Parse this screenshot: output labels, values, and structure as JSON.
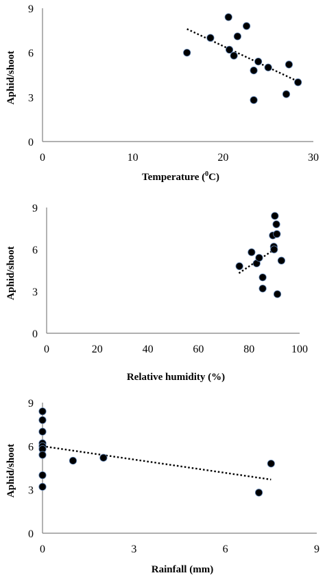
{
  "chart_data": [
    {
      "type": "scatter",
      "xlabel": "Temperature (°C)",
      "xlabel_main": "Temperature (",
      "xlabel_sup": "0",
      "xlabel_end": "C)",
      "ylabel": "Aphid/shoot",
      "xlim": [
        0,
        30
      ],
      "ylim": [
        0,
        9
      ],
      "xticks": [
        0,
        10,
        20,
        30
      ],
      "yticks": [
        0,
        3,
        6,
        9
      ],
      "grid": false,
      "trendline": {
        "style": "dotted",
        "x": [
          16,
          28.5
        ],
        "y": [
          7.6,
          4.0
        ]
      },
      "points": [
        {
          "x": 16.0,
          "y": 6.0
        },
        {
          "x": 18.6,
          "y": 7.0
        },
        {
          "x": 20.6,
          "y": 8.4
        },
        {
          "x": 20.7,
          "y": 6.2
        },
        {
          "x": 21.2,
          "y": 5.8
        },
        {
          "x": 21.6,
          "y": 7.1
        },
        {
          "x": 22.6,
          "y": 7.8
        },
        {
          "x": 23.4,
          "y": 4.8
        },
        {
          "x": 23.4,
          "y": 2.8
        },
        {
          "x": 23.9,
          "y": 5.4
        },
        {
          "x": 25.0,
          "y": 5.0
        },
        {
          "x": 27.0,
          "y": 3.2
        },
        {
          "x": 27.3,
          "y": 5.2
        },
        {
          "x": 28.3,
          "y": 4.0
        }
      ]
    },
    {
      "type": "scatter",
      "xlabel": "Relative humidity (%)",
      "ylabel": "Aphid/shoot",
      "xlim": [
        0,
        100
      ],
      "ylim": [
        0,
        9
      ],
      "xticks": [
        0,
        20,
        40,
        60,
        80,
        100
      ],
      "yticks": [
        0,
        3,
        6,
        9
      ],
      "grid": false,
      "trendline": {
        "style": "dotted",
        "x": [
          76,
          90
        ],
        "y": [
          4.3,
          6.0
        ]
      },
      "points": [
        {
          "x": 76.2,
          "y": 4.8
        },
        {
          "x": 81.0,
          "y": 5.8
        },
        {
          "x": 83.0,
          "y": 5.0
        },
        {
          "x": 84.0,
          "y": 5.4
        },
        {
          "x": 85.4,
          "y": 4.0
        },
        {
          "x": 85.4,
          "y": 3.2
        },
        {
          "x": 89.4,
          "y": 7.0
        },
        {
          "x": 89.8,
          "y": 6.2
        },
        {
          "x": 89.9,
          "y": 6.0
        },
        {
          "x": 90.2,
          "y": 8.4
        },
        {
          "x": 90.8,
          "y": 7.8
        },
        {
          "x": 91.0,
          "y": 7.1
        },
        {
          "x": 91.2,
          "y": 2.8
        },
        {
          "x": 92.8,
          "y": 5.2
        }
      ]
    },
    {
      "type": "scatter",
      "xlabel": "Rainfall (mm)",
      "ylabel": "Aphid/shoot",
      "xlim": [
        0,
        9
      ],
      "ylim": [
        0,
        9
      ],
      "xticks": [
        0,
        3,
        6,
        9
      ],
      "yticks": [
        0,
        3,
        6,
        9
      ],
      "grid": false,
      "trendline": {
        "style": "dotted",
        "x": [
          0,
          7.5
        ],
        "y": [
          6.0,
          3.7
        ]
      },
      "points": [
        {
          "x": 0.0,
          "y": 8.4
        },
        {
          "x": 0.0,
          "y": 7.8
        },
        {
          "x": 0.0,
          "y": 7.0
        },
        {
          "x": 0.0,
          "y": 6.2
        },
        {
          "x": 0.0,
          "y": 6.0
        },
        {
          "x": 0.0,
          "y": 5.8
        },
        {
          "x": 0.0,
          "y": 5.4
        },
        {
          "x": 0.0,
          "y": 4.0
        },
        {
          "x": 0.0,
          "y": 3.2
        },
        {
          "x": 1.0,
          "y": 5.0
        },
        {
          "x": 2.0,
          "y": 5.2
        },
        {
          "x": 7.1,
          "y": 2.8
        },
        {
          "x": 7.5,
          "y": 4.8
        }
      ]
    }
  ]
}
